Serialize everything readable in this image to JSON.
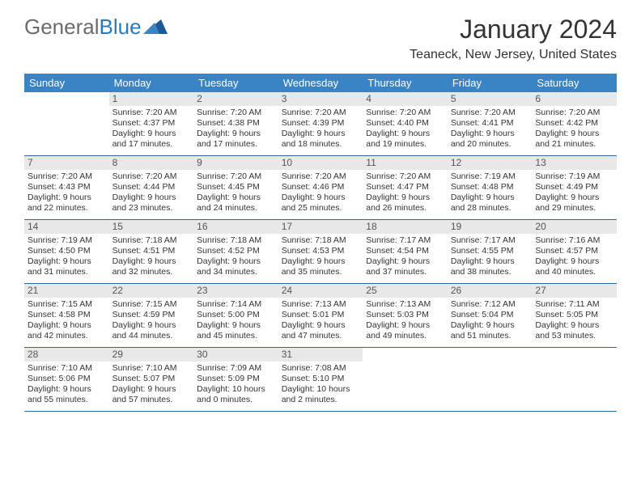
{
  "brand": {
    "part1": "General",
    "part2": "Blue"
  },
  "title": "January 2024",
  "location": "Teaneck, New Jersey, United States",
  "colors": {
    "header_bg": "#3a83c4",
    "header_text": "#ffffff",
    "daynum_bg": "#e8e8e8",
    "border": "#2a6aa0",
    "logo_gray": "#6b6b6b",
    "logo_blue": "#2a7ab8"
  },
  "dayNames": [
    "Sunday",
    "Monday",
    "Tuesday",
    "Wednesday",
    "Thursday",
    "Friday",
    "Saturday"
  ],
  "weeks": [
    [
      {
        "n": "",
        "sr": "",
        "ss": "",
        "dl": ""
      },
      {
        "n": "1",
        "sr": "Sunrise: 7:20 AM",
        "ss": "Sunset: 4:37 PM",
        "dl": "Daylight: 9 hours and 17 minutes."
      },
      {
        "n": "2",
        "sr": "Sunrise: 7:20 AM",
        "ss": "Sunset: 4:38 PM",
        "dl": "Daylight: 9 hours and 17 minutes."
      },
      {
        "n": "3",
        "sr": "Sunrise: 7:20 AM",
        "ss": "Sunset: 4:39 PM",
        "dl": "Daylight: 9 hours and 18 minutes."
      },
      {
        "n": "4",
        "sr": "Sunrise: 7:20 AM",
        "ss": "Sunset: 4:40 PM",
        "dl": "Daylight: 9 hours and 19 minutes."
      },
      {
        "n": "5",
        "sr": "Sunrise: 7:20 AM",
        "ss": "Sunset: 4:41 PM",
        "dl": "Daylight: 9 hours and 20 minutes."
      },
      {
        "n": "6",
        "sr": "Sunrise: 7:20 AM",
        "ss": "Sunset: 4:42 PM",
        "dl": "Daylight: 9 hours and 21 minutes."
      }
    ],
    [
      {
        "n": "7",
        "sr": "Sunrise: 7:20 AM",
        "ss": "Sunset: 4:43 PM",
        "dl": "Daylight: 9 hours and 22 minutes."
      },
      {
        "n": "8",
        "sr": "Sunrise: 7:20 AM",
        "ss": "Sunset: 4:44 PM",
        "dl": "Daylight: 9 hours and 23 minutes."
      },
      {
        "n": "9",
        "sr": "Sunrise: 7:20 AM",
        "ss": "Sunset: 4:45 PM",
        "dl": "Daylight: 9 hours and 24 minutes."
      },
      {
        "n": "10",
        "sr": "Sunrise: 7:20 AM",
        "ss": "Sunset: 4:46 PM",
        "dl": "Daylight: 9 hours and 25 minutes."
      },
      {
        "n": "11",
        "sr": "Sunrise: 7:20 AM",
        "ss": "Sunset: 4:47 PM",
        "dl": "Daylight: 9 hours and 26 minutes."
      },
      {
        "n": "12",
        "sr": "Sunrise: 7:19 AM",
        "ss": "Sunset: 4:48 PM",
        "dl": "Daylight: 9 hours and 28 minutes."
      },
      {
        "n": "13",
        "sr": "Sunrise: 7:19 AM",
        "ss": "Sunset: 4:49 PM",
        "dl": "Daylight: 9 hours and 29 minutes."
      }
    ],
    [
      {
        "n": "14",
        "sr": "Sunrise: 7:19 AM",
        "ss": "Sunset: 4:50 PM",
        "dl": "Daylight: 9 hours and 31 minutes."
      },
      {
        "n": "15",
        "sr": "Sunrise: 7:18 AM",
        "ss": "Sunset: 4:51 PM",
        "dl": "Daylight: 9 hours and 32 minutes."
      },
      {
        "n": "16",
        "sr": "Sunrise: 7:18 AM",
        "ss": "Sunset: 4:52 PM",
        "dl": "Daylight: 9 hours and 34 minutes."
      },
      {
        "n": "17",
        "sr": "Sunrise: 7:18 AM",
        "ss": "Sunset: 4:53 PM",
        "dl": "Daylight: 9 hours and 35 minutes."
      },
      {
        "n": "18",
        "sr": "Sunrise: 7:17 AM",
        "ss": "Sunset: 4:54 PM",
        "dl": "Daylight: 9 hours and 37 minutes."
      },
      {
        "n": "19",
        "sr": "Sunrise: 7:17 AM",
        "ss": "Sunset: 4:55 PM",
        "dl": "Daylight: 9 hours and 38 minutes."
      },
      {
        "n": "20",
        "sr": "Sunrise: 7:16 AM",
        "ss": "Sunset: 4:57 PM",
        "dl": "Daylight: 9 hours and 40 minutes."
      }
    ],
    [
      {
        "n": "21",
        "sr": "Sunrise: 7:15 AM",
        "ss": "Sunset: 4:58 PM",
        "dl": "Daylight: 9 hours and 42 minutes."
      },
      {
        "n": "22",
        "sr": "Sunrise: 7:15 AM",
        "ss": "Sunset: 4:59 PM",
        "dl": "Daylight: 9 hours and 44 minutes."
      },
      {
        "n": "23",
        "sr": "Sunrise: 7:14 AM",
        "ss": "Sunset: 5:00 PM",
        "dl": "Daylight: 9 hours and 45 minutes."
      },
      {
        "n": "24",
        "sr": "Sunrise: 7:13 AM",
        "ss": "Sunset: 5:01 PM",
        "dl": "Daylight: 9 hours and 47 minutes."
      },
      {
        "n": "25",
        "sr": "Sunrise: 7:13 AM",
        "ss": "Sunset: 5:03 PM",
        "dl": "Daylight: 9 hours and 49 minutes."
      },
      {
        "n": "26",
        "sr": "Sunrise: 7:12 AM",
        "ss": "Sunset: 5:04 PM",
        "dl": "Daylight: 9 hours and 51 minutes."
      },
      {
        "n": "27",
        "sr": "Sunrise: 7:11 AM",
        "ss": "Sunset: 5:05 PM",
        "dl": "Daylight: 9 hours and 53 minutes."
      }
    ],
    [
      {
        "n": "28",
        "sr": "Sunrise: 7:10 AM",
        "ss": "Sunset: 5:06 PM",
        "dl": "Daylight: 9 hours and 55 minutes."
      },
      {
        "n": "29",
        "sr": "Sunrise: 7:10 AM",
        "ss": "Sunset: 5:07 PM",
        "dl": "Daylight: 9 hours and 57 minutes."
      },
      {
        "n": "30",
        "sr": "Sunrise: 7:09 AM",
        "ss": "Sunset: 5:09 PM",
        "dl": "Daylight: 10 hours and 0 minutes."
      },
      {
        "n": "31",
        "sr": "Sunrise: 7:08 AM",
        "ss": "Sunset: 5:10 PM",
        "dl": "Daylight: 10 hours and 2 minutes."
      },
      {
        "n": "",
        "sr": "",
        "ss": "",
        "dl": ""
      },
      {
        "n": "",
        "sr": "",
        "ss": "",
        "dl": ""
      },
      {
        "n": "",
        "sr": "",
        "ss": "",
        "dl": ""
      }
    ]
  ]
}
